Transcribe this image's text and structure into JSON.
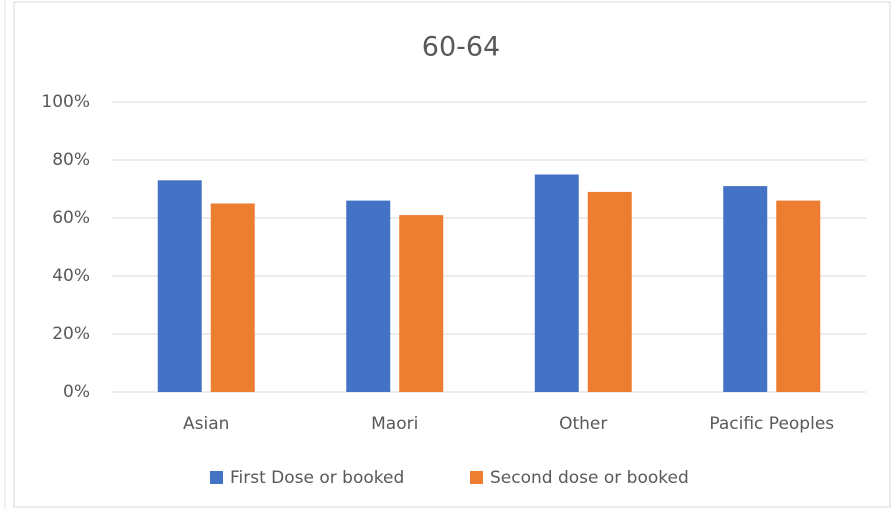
{
  "chart_data": {
    "type": "bar",
    "title": "60-64",
    "categories": [
      "Asian",
      "Maori",
      "Other",
      "Pacific Peoples"
    ],
    "series": [
      {
        "name": "First Dose or booked",
        "color": "#4472c4",
        "values": [
          73,
          66,
          75,
          71
        ]
      },
      {
        "name": "Second dose or booked",
        "color": "#ed7d31",
        "values": [
          65,
          61,
          69,
          66
        ]
      }
    ],
    "ylim": [
      0,
      100
    ],
    "yticks": [
      {
        "value": 0,
        "label": "0%"
      },
      {
        "value": 20,
        "label": "20%"
      },
      {
        "value": 40,
        "label": "40%"
      },
      {
        "value": 60,
        "label": "60%"
      },
      {
        "value": 80,
        "label": "80%"
      },
      {
        "value": 100,
        "label": "100%"
      }
    ],
    "grid": true,
    "legend": "bottom"
  }
}
